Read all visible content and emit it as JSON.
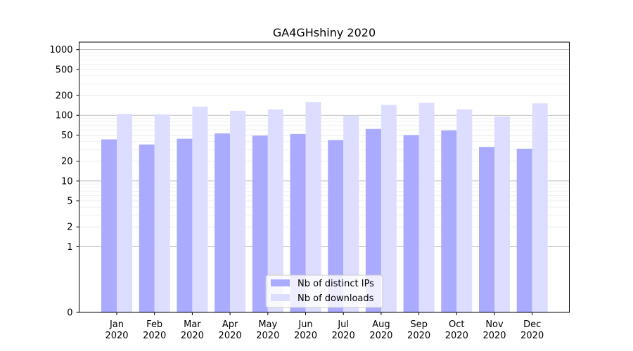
{
  "chart_data": {
    "type": "bar",
    "title": "GA4GHshiny 2020",
    "xlabel": "",
    "ylabel": "",
    "yscale": "symlog",
    "ylim": [
      0,
      1300
    ],
    "y_ticks": [
      0,
      1,
      2,
      5,
      10,
      20,
      50,
      100,
      200,
      500,
      1000
    ],
    "categories": [
      [
        "Jan",
        "2020"
      ],
      [
        "Feb",
        "2020"
      ],
      [
        "Mar",
        "2020"
      ],
      [
        "Apr",
        "2020"
      ],
      [
        "May",
        "2020"
      ],
      [
        "Jun",
        "2020"
      ],
      [
        "Jul",
        "2020"
      ],
      [
        "Aug",
        "2020"
      ],
      [
        "Sep",
        "2020"
      ],
      [
        "Oct",
        "2020"
      ],
      [
        "Nov",
        "2020"
      ],
      [
        "Dec",
        "2020"
      ]
    ],
    "series": [
      {
        "name": "Nb of distinct IPs",
        "color": "#aaaaff",
        "values": [
          43,
          36,
          44,
          53,
          49,
          52,
          42,
          62,
          50,
          59,
          33,
          31
        ]
      },
      {
        "name": "Nb of downloads",
        "color": "#ddddff",
        "values": [
          105,
          103,
          136,
          117,
          123,
          159,
          98,
          144,
          155,
          123,
          96,
          152
        ]
      }
    ],
    "grid": true,
    "legend_position": "bottom-center"
  }
}
